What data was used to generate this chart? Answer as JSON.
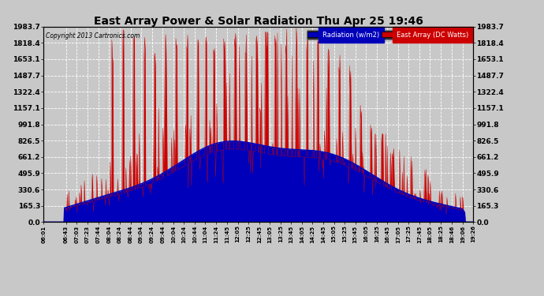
{
  "title": "East Array Power & Solar Radiation Thu Apr 25 19:46",
  "copyright": "Copyright 2013 Cartronics.com",
  "legend_radiation": "Radiation (w/m2)",
  "legend_east": "East Array (DC Watts)",
  "legend_radiation_bg": "#0000bb",
  "legend_east_bg": "#cc0000",
  "y_tick_labels": [
    "0.0",
    "165.3",
    "330.6",
    "495.9",
    "661.2",
    "826.5",
    "991.8",
    "1157.1",
    "1322.4",
    "1487.7",
    "1653.1",
    "1818.4",
    "1983.7"
  ],
  "y_tick_values": [
    0.0,
    165.3,
    330.6,
    495.9,
    661.2,
    826.5,
    991.8,
    1157.1,
    1322.4,
    1487.7,
    1653.1,
    1818.4,
    1983.7
  ],
  "ymax": 1983.7,
  "x_tick_labels": [
    "06:01",
    "06:43",
    "07:03",
    "07:23",
    "07:44",
    "08:04",
    "08:24",
    "08:44",
    "09:04",
    "09:24",
    "09:44",
    "10:04",
    "10:24",
    "10:44",
    "11:04",
    "11:24",
    "11:45",
    "12:05",
    "12:25",
    "12:45",
    "13:05",
    "13:25",
    "13:45",
    "14:05",
    "14:25",
    "14:45",
    "15:05",
    "15:25",
    "15:45",
    "16:05",
    "16:25",
    "16:45",
    "17:05",
    "17:25",
    "17:45",
    "18:05",
    "18:25",
    "18:46",
    "19:06",
    "19:26"
  ],
  "background_color": "#c8c8c8",
  "plot_bg_color": "#c8c8c8",
  "grid_color": "#ffffff",
  "fill_color_east": "#cc0000",
  "fill_color_radiation": "#0000bb",
  "line_color_radiation": "#0000bb",
  "line_color_east": "#cc0000"
}
